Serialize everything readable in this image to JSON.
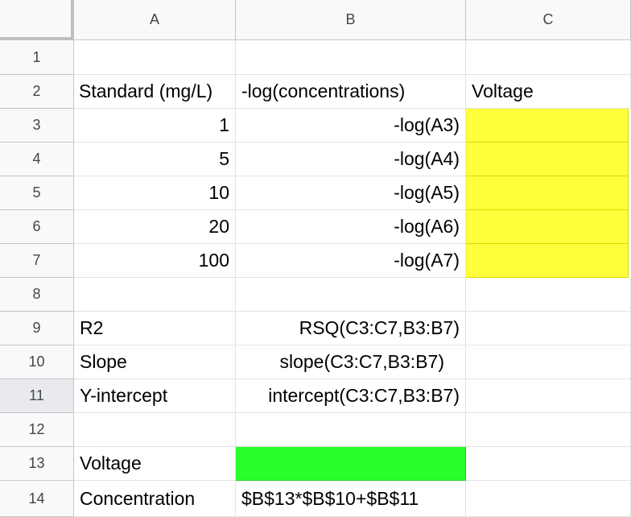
{
  "columns": [
    "A",
    "B",
    "C"
  ],
  "rows": [
    "1",
    "2",
    "3",
    "4",
    "5",
    "6",
    "7",
    "8",
    "9",
    "10",
    "11",
    "12",
    "13",
    "14"
  ],
  "cells": {
    "A2": "Standard (mg/L)",
    "B2": "-log(concentrations)",
    "C2": "Voltage",
    "A3": "1",
    "B3": "-log(A3)",
    "A4": "5",
    "B4": "-log(A4)",
    "A5": "10",
    "B5": "-log(A5)",
    "A6": "20",
    "B6": "-log(A6)",
    "A7": "100",
    "B7": "-log(A7)",
    "A9": "R2",
    "B9": "RSQ(C3:C7,B3:B7)",
    "A10": "Slope",
    "B10": "slope(C3:C7,B3:B7)",
    "A11": "Y-intercept",
    "B11": "intercept(C3:C7,B3:B7)",
    "A13": "Voltage",
    "A14": "Concentration",
    "B14": "$B$13*$B$10+$B$11"
  },
  "fill_colors": {
    "yellow": "#ffff3b",
    "green": "#2bff2b"
  },
  "selected_row": "11"
}
